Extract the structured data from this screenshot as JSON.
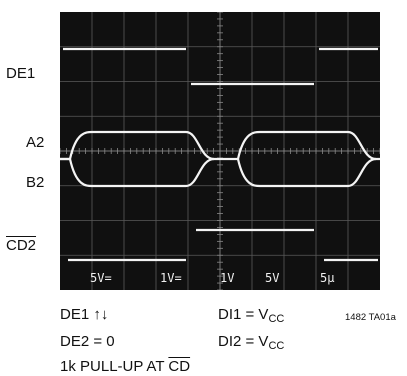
{
  "chart_data": {
    "type": "line",
    "traces": [
      {
        "name": "DE1",
        "kind": "digital",
        "transitions": [
          0,
          4,
          8
        ],
        "start_high": true
      },
      {
        "name": "A2",
        "kind": "differential-upper"
      },
      {
        "name": "B2",
        "kind": "differential-lower"
      },
      {
        "name": "CD2",
        "overline": true,
        "kind": "digital",
        "transitions": [
          0,
          4,
          8
        ],
        "start_high": false
      }
    ],
    "grid": {
      "divisions_x": 10,
      "divisions_y": 8,
      "on": true
    },
    "scale_readout": [
      "5V=",
      "1V=",
      "1V",
      "5V",
      "5µ"
    ]
  },
  "captions": {
    "line1_left": "DE1 ↑↓",
    "line1_right_main": "DI1 = V",
    "line1_right_sub": "CC",
    "line2_left": "DE2 = 0",
    "line2_right_main": "DI2 = V",
    "line2_right_sub": "CC",
    "line3_pre": "1k PULL-UP AT ",
    "line3_over": "CD",
    "ref": "1482 TA01a"
  },
  "labels": {
    "de1": "DE1",
    "a2": "A2",
    "b2": "B2",
    "cd2": "CD2"
  }
}
